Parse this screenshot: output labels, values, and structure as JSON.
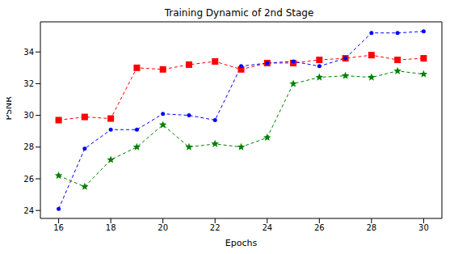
{
  "chart_data": {
    "type": "line",
    "title": "Training Dynamic of 2nd Stage",
    "x_label": "Epochs",
    "y_label": "PSNR",
    "x": [
      16,
      17,
      18,
      19,
      20,
      21,
      22,
      23,
      24,
      25,
      26,
      27,
      28,
      29,
      30
    ],
    "xlim": [
      15.3,
      30.7
    ],
    "xticks": [
      16,
      18,
      20,
      22,
      24,
      26,
      28,
      30
    ],
    "ylim": [
      23.5,
      35.9
    ],
    "yticks": [
      24,
      26,
      28,
      30,
      32,
      34
    ],
    "grid": false,
    "series": [
      {
        "color": "#ff0000",
        "marker": "square",
        "line_style": "dashed",
        "values": [
          29.7,
          29.9,
          29.8,
          33.0,
          32.9,
          33.2,
          33.4,
          32.9,
          33.3,
          33.3,
          33.5,
          33.6,
          33.8,
          33.5,
          33.6
        ]
      },
      {
        "color": "#0000ff",
        "marker": "circle",
        "line_style": "dashed",
        "values": [
          24.1,
          27.9,
          29.1,
          29.1,
          30.1,
          30.0,
          29.7,
          33.1,
          33.3,
          33.4,
          33.1,
          33.6,
          35.2,
          35.2,
          35.3
        ]
      },
      {
        "color": "#008000",
        "marker": "star",
        "line_style": "dashed",
        "values": [
          26.2,
          25.5,
          27.2,
          28.0,
          29.4,
          28.0,
          28.2,
          28.0,
          28.6,
          32.0,
          32.4,
          32.5,
          32.4,
          32.8,
          32.6
        ]
      }
    ]
  }
}
